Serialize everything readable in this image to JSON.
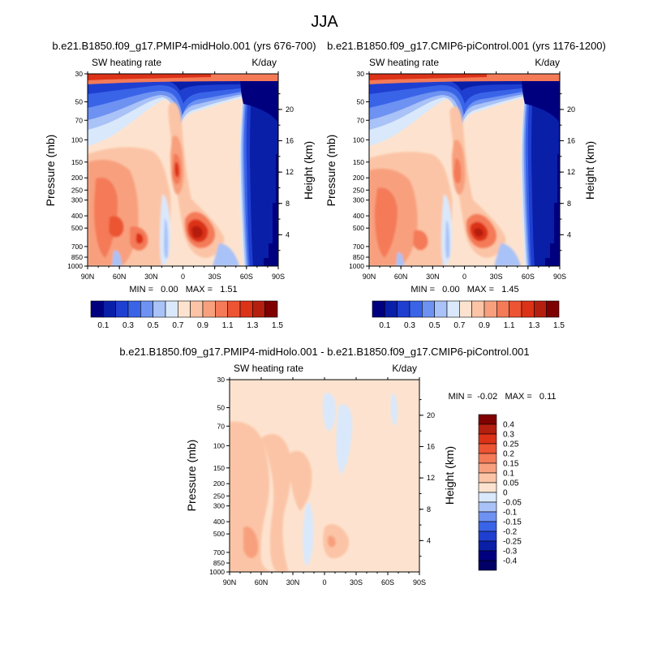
{
  "figure_title": "JJA",
  "chart_data": [
    {
      "type": "heatmap",
      "id": "p1",
      "title": "b.e21.B1850.f09_g17.PMIP4-midHolo.001 (yrs 676-700)",
      "left_label": "SW heating rate",
      "right_label": "K/day",
      "ylabel": "Pressure (mb)",
      "ylabel_right": "Height (km)",
      "x_ticks": [
        "90N",
        "60N",
        "30N",
        "0",
        "30S",
        "60S",
        "90S"
      ],
      "y_ticks": [
        "30",
        "50",
        "70",
        "100",
        "150",
        "200",
        "250",
        "300",
        "400",
        "500",
        "700",
        "850",
        "1000"
      ],
      "height_ticks": [
        "20",
        "16",
        "12",
        "8",
        "4"
      ],
      "stats": "MIN =   0.00   MAX =   1.51",
      "min": 0.0,
      "max": 1.51
    },
    {
      "type": "heatmap",
      "id": "p2",
      "title": "b.e21.B1850.f09_g17.CMIP6-piControl.001 (yrs 1176-1200)",
      "left_label": "SW heating rate",
      "right_label": "K/day",
      "ylabel": "Pressure (mb)",
      "ylabel_right": "Height (km)",
      "x_ticks": [
        "90N",
        "60N",
        "30N",
        "0",
        "30S",
        "60S",
        "90S"
      ],
      "y_ticks": [
        "30",
        "50",
        "70",
        "100",
        "150",
        "200",
        "250",
        "300",
        "400",
        "500",
        "700",
        "850",
        "1000"
      ],
      "height_ticks": [
        "20",
        "16",
        "12",
        "8",
        "4"
      ],
      "stats": "MIN =   0.00   MAX =   1.45",
      "min": 0.0,
      "max": 1.45
    },
    {
      "type": "heatmap",
      "id": "p3",
      "title": "b.e21.B1850.f09_g17.PMIP4-midHolo.001 - b.e21.B1850.f09_g17.CMIP6-piControl.001",
      "left_label": "SW heating rate",
      "right_label": "K/day",
      "ylabel": "Pressure (mb)",
      "ylabel_right": "Height (km)",
      "x_ticks": [
        "90N",
        "60N",
        "30N",
        "0",
        "30S",
        "60S",
        "90S"
      ],
      "y_ticks": [
        "30",
        "50",
        "70",
        "100",
        "150",
        "200",
        "250",
        "300",
        "400",
        "500",
        "700",
        "850",
        "1000"
      ],
      "height_ticks": [
        "20",
        "16",
        "12",
        "8",
        "4"
      ],
      "stats": "MIN =  -0.02   MAX =   0.11",
      "min": -0.02,
      "max": 0.11
    }
  ],
  "colorbar_main": {
    "labels": [
      "0.1",
      "0.3",
      "0.5",
      "0.7",
      "0.9",
      "1.1",
      "1.3",
      "1.5"
    ],
    "colors": [
      "#00007f",
      "#0a1fa8",
      "#1f3fd1",
      "#3a64e8",
      "#6e92f2",
      "#a9c2f7",
      "#d9e8fb",
      "#fde3cf",
      "#fcc4a6",
      "#f8a07e",
      "#f47a58",
      "#ec5433",
      "#dc3217",
      "#b51f0f",
      "#7f0000"
    ]
  },
  "colorbar_diff": {
    "labels": [
      "0.4",
      "0.3",
      "0.25",
      "0.2",
      "0.15",
      "0.1",
      "0.05",
      "0",
      "-0.05",
      "-0.1",
      "-0.15",
      "-0.2",
      "-0.25",
      "-0.3",
      "-0.4"
    ],
    "colors": [
      "#7f0000",
      "#b51f0f",
      "#dc3217",
      "#ec5433",
      "#f47a58",
      "#f8a07e",
      "#fcc4a6",
      "#fde3cf",
      "#d9e8fb",
      "#a9c2f7",
      "#6e92f2",
      "#3a64e8",
      "#1f3fd1",
      "#0a1fa8",
      "#00007f",
      "#000066"
    ]
  }
}
